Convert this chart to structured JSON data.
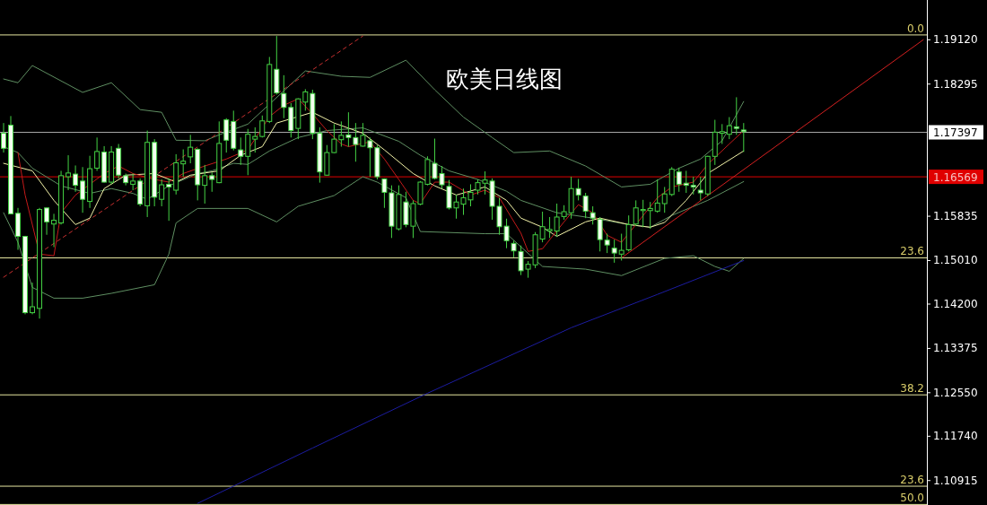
{
  "chart_data": {
    "type": "candlestick",
    "title": "欧美日线图",
    "categories": [
      null,
      null,
      null,
      null,
      null,
      null,
      null,
      null,
      null,
      null,
      null,
      null,
      null,
      null,
      null,
      null,
      null,
      null,
      null,
      null,
      null,
      null,
      null,
      null,
      null,
      null,
      null,
      null,
      null,
      null,
      null,
      null,
      null,
      null,
      null,
      null,
      null,
      null,
      null,
      null,
      null,
      null,
      null,
      null,
      null,
      null,
      null,
      null,
      null,
      null,
      null,
      null,
      null,
      null,
      null,
      null,
      null,
      null,
      null,
      null,
      null,
      null,
      null,
      null,
      null,
      null,
      null,
      null,
      null,
      null,
      null,
      null,
      null,
      null,
      null,
      null,
      null,
      null,
      null,
      null,
      null,
      null,
      null,
      null,
      null,
      null,
      null,
      null,
      null,
      null,
      null,
      null,
      null,
      null,
      null,
      null,
      null,
      null,
      null,
      null,
      null,
      null,
      null,
      null,
      null,
      null,
      null,
      null,
      null,
      null,
      null,
      null,
      null,
      null,
      null,
      null,
      null,
      null,
      null,
      null,
      null,
      null,
      null,
      null,
      null,
      null,
      null,
      null,
      null
    ],
    "ohlc": [
      [
        1.1738,
        1.1757,
        1.1702,
        1.171
      ],
      [
        1.1753,
        1.177,
        1.1588,
        1.1588
      ],
      [
        1.1589,
        1.1599,
        1.1521,
        1.1546
      ],
      [
        1.1546,
        1.1547,
        1.1401,
        1.1404
      ],
      [
        1.1404,
        1.146,
        1.1401,
        1.1415
      ],
      [
        1.1412,
        1.1599,
        1.1393,
        1.1596
      ],
      [
        1.1599,
        1.1599,
        1.1549,
        1.1573
      ],
      [
        1.1569,
        1.1588,
        1.1526,
        1.1576
      ],
      [
        1.1571,
        1.1668,
        1.1568,
        1.1659
      ],
      [
        1.1657,
        1.1697,
        1.1632,
        1.1664
      ],
      [
        1.1662,
        1.1678,
        1.1629,
        1.1641
      ],
      [
        1.1649,
        1.1675,
        1.159,
        1.1615
      ],
      [
        1.1611,
        1.1696,
        1.1599,
        1.1672
      ],
      [
        1.1673,
        1.173,
        1.1668,
        1.1704
      ],
      [
        1.1703,
        1.1714,
        1.1646,
        1.1647
      ],
      [
        1.1647,
        1.1714,
        1.1643,
        1.1703
      ],
      [
        1.171,
        1.1718,
        1.1654,
        1.166
      ],
      [
        1.1659,
        1.1663,
        1.1641,
        1.1646
      ],
      [
        1.1643,
        1.1663,
        1.1632,
        1.1649
      ],
      [
        1.1649,
        1.1654,
        1.1602,
        1.1606
      ],
      [
        1.1603,
        1.1743,
        1.1582,
        1.1721
      ],
      [
        1.1721,
        1.1727,
        1.1602,
        1.1619
      ],
      [
        1.1615,
        1.1652,
        1.1602,
        1.1642
      ],
      [
        1.1643,
        1.1654,
        1.1575,
        1.1638
      ],
      [
        1.1632,
        1.1699,
        1.1624,
        1.1683
      ],
      [
        1.1681,
        1.1708,
        1.1657,
        1.1686
      ],
      [
        1.1694,
        1.1735,
        1.1682,
        1.1712
      ],
      [
        1.1708,
        1.171,
        1.1613,
        1.1642
      ],
      [
        1.1641,
        1.1679,
        1.1607,
        1.1659
      ],
      [
        1.1659,
        1.1665,
        1.1629,
        1.1652
      ],
      [
        1.1646,
        1.176,
        1.1645,
        1.1719
      ],
      [
        1.1763,
        1.1766,
        1.1702,
        1.1725
      ],
      [
        1.176,
        1.178,
        1.1706,
        1.171
      ],
      [
        1.1707,
        1.173,
        1.1679,
        1.1695
      ],
      [
        1.1695,
        1.1746,
        1.166,
        1.1736
      ],
      [
        1.1727,
        1.1749,
        1.1702,
        1.1732
      ],
      [
        1.1732,
        1.1771,
        1.173,
        1.1761
      ],
      [
        1.176,
        1.188,
        1.1757,
        1.1866
      ],
      [
        1.1857,
        1.1919,
        1.181,
        1.1813
      ],
      [
        1.1812,
        1.1846,
        1.1766,
        1.1786
      ],
      [
        1.1786,
        1.1794,
        1.173,
        1.1743
      ],
      [
        1.1747,
        1.1803,
        1.1727,
        1.1802
      ],
      [
        1.1796,
        1.182,
        1.178,
        1.1815
      ],
      [
        1.1812,
        1.1819,
        1.1727,
        1.1738
      ],
      [
        1.1738,
        1.1749,
        1.1646,
        1.1666
      ],
      [
        1.166,
        1.1716,
        1.1659,
        1.1702
      ],
      [
        1.1702,
        1.1755,
        1.1701,
        1.1727
      ],
      [
        1.1726,
        1.176,
        1.1713,
        1.1734
      ],
      [
        1.1735,
        1.1777,
        1.1713,
        1.173
      ],
      [
        1.173,
        1.1757,
        1.1685,
        1.1717
      ],
      [
        1.1714,
        1.1757,
        1.1713,
        1.1734
      ],
      [
        1.1724,
        1.173,
        1.1657,
        1.1711
      ],
      [
        1.1711,
        1.1716,
        1.1652,
        1.1657
      ],
      [
        1.1653,
        1.1654,
        1.1599,
        1.1628
      ],
      [
        1.1627,
        1.1641,
        1.1543,
        1.1565
      ],
      [
        1.156,
        1.1641,
        1.1557,
        1.1624
      ],
      [
        1.161,
        1.1629,
        1.1563,
        1.1568
      ],
      [
        1.1565,
        1.1613,
        1.1543,
        1.1607
      ],
      [
        1.1606,
        1.1649,
        1.1604,
        1.1647
      ],
      [
        1.1643,
        1.1695,
        1.1641,
        1.1689
      ],
      [
        1.1682,
        1.1728,
        1.1652,
        1.1654
      ],
      [
        1.1663,
        1.1677,
        1.1635,
        1.1642
      ],
      [
        1.1639,
        1.1651,
        1.1596,
        1.1599
      ],
      [
        1.1599,
        1.1624,
        1.1579,
        1.161
      ],
      [
        1.1606,
        1.1635,
        1.1586,
        1.1618
      ],
      [
        1.1614,
        1.1643,
        1.1602,
        1.1628
      ],
      [
        1.1632,
        1.1652,
        1.1624,
        1.1646
      ],
      [
        1.1645,
        1.1667,
        1.1624,
        1.1651
      ],
      [
        1.1649,
        1.1654,
        1.1577,
        1.1602
      ],
      [
        1.1602,
        1.1618,
        1.1549,
        1.1564
      ],
      [
        1.1565,
        1.1579,
        1.1524,
        1.1538
      ],
      [
        1.1533,
        1.1538,
        1.1507,
        1.1519
      ],
      [
        1.1518,
        1.1529,
        1.1474,
        1.1482
      ],
      [
        1.1485,
        1.15,
        1.1469,
        1.1494
      ],
      [
        1.1493,
        1.1554,
        1.1487,
        1.1549
      ],
      [
        1.1541,
        1.1592,
        1.1535,
        1.1564
      ],
      [
        1.1556,
        1.1582,
        1.1543,
        1.1559
      ],
      [
        1.1556,
        1.1607,
        1.1545,
        1.1582
      ],
      [
        1.1583,
        1.1604,
        1.1577,
        1.1592
      ],
      [
        1.159,
        1.1657,
        1.1579,
        1.1635
      ],
      [
        1.1635,
        1.1653,
        1.1613,
        1.1623
      ],
      [
        1.1621,
        1.1627,
        1.158,
        1.1593
      ],
      [
        1.159,
        1.1602,
        1.1568,
        1.158
      ],
      [
        1.1578,
        1.1582,
        1.1518,
        1.154
      ],
      [
        1.1539,
        1.1551,
        1.1515,
        1.153
      ],
      [
        1.1524,
        1.154,
        1.1497,
        1.1515
      ],
      [
        1.1513,
        1.1551,
        1.1501,
        1.152
      ],
      [
        1.1521,
        1.1585,
        1.1518,
        1.1568
      ],
      [
        1.1569,
        1.1613,
        1.1565,
        1.1599
      ],
      [
        1.1594,
        1.1614,
        1.1563,
        1.1596
      ],
      [
        1.1594,
        1.161,
        1.156,
        1.1598
      ],
      [
        1.1593,
        1.1652,
        1.159,
        1.1608
      ],
      [
        1.1607,
        1.1638,
        1.159,
        1.1625
      ],
      [
        1.1624,
        1.1675,
        1.1621,
        1.1671
      ],
      [
        1.1666,
        1.1674,
        1.1629,
        1.1643
      ],
      [
        1.1645,
        1.1668,
        1.1627,
        1.1641
      ],
      [
        1.1641,
        1.1657,
        1.1624,
        1.1638
      ],
      [
        1.1632,
        1.1657,
        1.1613,
        1.1627
      ],
      [
        1.1625,
        1.1696,
        1.1621,
        1.1695
      ],
      [
        1.1695,
        1.1763,
        1.1679,
        1.174
      ],
      [
        1.1738,
        1.1755,
        1.1718,
        1.1741
      ],
      [
        1.1736,
        1.1768,
        1.1727,
        1.1752
      ],
      [
        1.175,
        1.1805,
        1.1735,
        1.1747
      ],
      [
        1.1744,
        1.1757,
        1.1703,
        1.1741
      ],
      null,
      null,
      null,
      null,
      null,
      null,
      null,
      null,
      null,
      null,
      null,
      null,
      null,
      null,
      null,
      null,
      null,
      null,
      null,
      null,
      null,
      null,
      null,
      null,
      null
    ],
    "color": "#44d244",
    "series": [
      {
        "type": "line",
        "color": "#5f8f62",
        "values": [
          1.1839,
          null,
          1.1832,
          null,
          1.1864,
          null,
          null,
          null,
          null,
          null,
          null,
          1.1814,
          null,
          null,
          null,
          1.1832,
          null,
          null,
          null,
          1.1782,
          null,
          null,
          1.1777,
          null,
          1.1725,
          null,
          null,
          null,
          1.1724,
          null,
          1.1735,
          null,
          null,
          null,
          1.1755,
          null,
          null,
          null,
          null,
          null,
          null,
          null,
          1.1854,
          null,
          null,
          null,
          null,
          1.1844,
          null,
          null,
          null,
          1.1842,
          null,
          null,
          null,
          null,
          1.1874,
          null,
          null,
          null,
          1.1819,
          null,
          null,
          null,
          1.1768,
          null,
          null,
          null,
          1.173,
          null,
          null,
          1.1702,
          null,
          null,
          null,
          null,
          1.1705,
          null,
          null,
          null,
          null,
          1.1677,
          null,
          null,
          null,
          null,
          1.1638,
          null,
          null,
          null,
          1.1643,
          null,
          null,
          null,
          1.1673,
          null,
          null,
          1.169,
          null,
          null,
          1.1724,
          null,
          null,
          1.1797,
          null,
          null,
          null,
          null,
          null,
          null,
          null,
          null,
          null,
          null,
          null,
          null,
          null,
          null,
          null,
          null,
          null,
          null,
          null,
          null,
          null,
          null,
          null,
          null,
          null
        ]
      },
      {
        "type": "line",
        "color": "#5f8f62",
        "values": [
          1.1713,
          null,
          1.1702,
          null,
          1.1673,
          null,
          null,
          null,
          1.164,
          null,
          null,
          null,
          1.1626,
          null,
          null,
          1.1635,
          null,
          null,
          1.1626,
          null,
          1.1615,
          null,
          null,
          1.164,
          null,
          null,
          null,
          1.1663,
          null,
          1.1668,
          null,
          null,
          1.1682,
          null,
          1.168,
          null,
          null,
          1.1705,
          null,
          null,
          null,
          1.173,
          null,
          null,
          null,
          1.1743,
          null,
          null,
          null,
          null,
          1.1748,
          null,
          null,
          null,
          null,
          1.1723,
          null,
          null,
          1.1697,
          null,
          null,
          null,
          1.1668,
          null,
          null,
          null,
          1.1652,
          null,
          null,
          null,
          1.163,
          null,
          1.1613,
          null,
          null,
          null,
          null,
          1.159,
          null,
          null,
          null,
          null,
          1.158,
          null,
          null,
          null,
          null,
          1.1568,
          null,
          null,
          1.1563,
          null,
          null,
          1.1585,
          null,
          null,
          null,
          null,
          1.1613,
          null,
          null,
          null,
          null,
          1.1648,
          null,
          null,
          null,
          null,
          null,
          null,
          null,
          null,
          null,
          null,
          null,
          null,
          null,
          null,
          null,
          null,
          null,
          null,
          null,
          null,
          null,
          null,
          null,
          null,
          null
        ]
      },
      {
        "type": "line",
        "color": "#5f8f62",
        "values": [
          1.159,
          null,
          1.1535,
          null,
          1.1451,
          null,
          null,
          1.1431,
          null,
          null,
          null,
          1.1431,
          null,
          null,
          null,
          1.144,
          null,
          null,
          null,
          null,
          null,
          1.1456,
          null,
          1.1513,
          1.1571,
          null,
          null,
          1.1598,
          null,
          null,
          null,
          null,
          null,
          null,
          1.1598,
          null,
          null,
          null,
          1.1573,
          null,
          null,
          1.1602,
          null,
          null,
          null,
          null,
          1.1622,
          null,
          null,
          null,
          1.1657,
          null,
          1.1647,
          null,
          null,
          null,
          1.1618,
          null,
          1.1555,
          null,
          null,
          null,
          null,
          null,
          null,
          null,
          null,
          1.1551,
          null,
          null,
          1.1551,
          null,
          null,
          null,
          null,
          1.149,
          null,
          null,
          null,
          null,
          null,
          1.1485,
          null,
          null,
          null,
          null,
          1.1473,
          null,
          null,
          null,
          null,
          null,
          1.1505,
          null,
          null,
          null,
          1.151,
          null,
          null,
          1.149,
          null,
          1.1481,
          null,
          1.1505,
          null,
          null,
          null,
          null,
          null,
          null,
          null,
          null,
          null,
          null,
          null,
          null,
          null,
          null,
          null,
          null,
          null,
          null,
          null,
          null,
          null,
          null,
          null,
          null,
          null
        ]
      },
      {
        "type": "line",
        "color": "#f2f2a8",
        "values": [
          1.1682,
          null,
          null,
          null,
          1.1668,
          null,
          null,
          1.1613,
          null,
          null,
          1.1568,
          null,
          1.158,
          null,
          1.1635,
          null,
          null,
          1.166,
          null,
          null,
          null,
          1.1663,
          null,
          null,
          1.1647,
          null,
          1.166,
          null,
          null,
          null,
          1.1668,
          null,
          null,
          1.1697,
          null,
          null,
          1.1713,
          null,
          1.1757,
          null,
          null,
          null,
          null,
          1.1777,
          null,
          null,
          1.1757,
          null,
          null,
          null,
          1.1738,
          null,
          null,
          1.1707,
          null,
          null,
          null,
          1.1663,
          null,
          null,
          1.164,
          null,
          null,
          1.1623,
          null,
          null,
          null,
          1.1638,
          null,
          null,
          1.1613,
          null,
          1.158,
          null,
          null,
          1.1563,
          null,
          1.1546,
          null,
          null,
          null,
          1.1573,
          null,
          1.158,
          null,
          null,
          null,
          1.1568,
          null,
          null,
          1.1563,
          null,
          1.1572,
          null,
          null,
          1.1613,
          null,
          null,
          1.1663,
          null,
          null,
          null,
          null,
          1.1705,
          null,
          null,
          null,
          null,
          null,
          null,
          null,
          null,
          null,
          null,
          null,
          null,
          null,
          null,
          null,
          null,
          null,
          null,
          null,
          null,
          null,
          null,
          null,
          null,
          null
        ]
      },
      {
        "type": "line",
        "color": "#c41a1a",
        "values": [
          null,
          null,
          1.1702,
          1.1623,
          null,
          1.1513,
          null,
          1.151,
          1.159,
          null,
          1.1623,
          null,
          null,
          null,
          1.1663,
          null,
          1.1677,
          null,
          1.1663,
          null,
          null,
          1.1652,
          null,
          1.1647,
          null,
          1.1663,
          null,
          null,
          1.1677,
          null,
          null,
          1.169,
          null,
          null,
          1.1707,
          null,
          null,
          1.1769,
          null,
          1.179,
          null,
          1.1802,
          null,
          1.1774,
          null,
          1.1743,
          null,
          1.1718,
          1.1713,
          null,
          null,
          1.1722,
          null,
          1.169,
          null,
          1.1652,
          null,
          1.1613,
          1.1607,
          null,
          1.1647,
          null,
          1.1647,
          null,
          null,
          1.1623,
          null,
          1.1632,
          null,
          1.1618,
          null,
          null,
          1.1552,
          1.1518,
          null,
          1.1523,
          null,
          null,
          1.1573,
          null,
          1.1605,
          null,
          1.159,
          null,
          1.1548,
          null,
          1.1535,
          null,
          1.1568,
          null,
          null,
          1.1618,
          null,
          1.1638,
          null,
          null,
          1.1647,
          null,
          1.168,
          null,
          null,
          1.1718,
          null,
          1.1743,
          null,
          null,
          null,
          null,
          null,
          null,
          null,
          null,
          null,
          null,
          null,
          null,
          null,
          null,
          null,
          null,
          null,
          null,
          null,
          null,
          null,
          null,
          null,
          null,
          null
        ]
      },
      {
        "type": "line",
        "color": "#1c1ca0",
        "values": [
          null,
          null,
          null,
          null,
          null,
          null,
          null,
          null,
          null,
          null,
          null,
          null,
          null,
          null,
          null,
          null,
          null,
          null,
          null,
          null,
          null,
          null,
          null,
          null,
          null,
          null,
          null,
          1.1049,
          null,
          null,
          null,
          null,
          null,
          null,
          null,
          null,
          null,
          null,
          null,
          null,
          null,
          null,
          null,
          1.1152,
          null,
          null,
          null,
          null,
          null,
          null,
          null,
          null,
          null,
          null,
          null,
          null,
          null,
          null,
          null,
          1.1254,
          null,
          null,
          null,
          null,
          null,
          null,
          null,
          null,
          null,
          null,
          null,
          null,
          null,
          null,
          null,
          null,
          null,
          null,
          null,
          1.1376,
          null,
          null,
          null,
          null,
          null,
          null,
          null,
          null,
          null,
          null,
          null,
          1.1438,
          null,
          null,
          null,
          null,
          null,
          null,
          null,
          null,
          null,
          null,
          null,
          1.1501,
          null,
          null,
          null,
          null,
          null,
          null,
          null,
          null,
          null,
          null,
          null,
          null,
          null,
          null,
          null,
          null,
          null,
          null,
          null,
          null,
          null,
          null,
          null,
          null,
          null
        ]
      },
      {
        "type": "line",
        "color": "#d42020",
        "values": [
          null,
          null,
          null,
          null,
          null,
          null,
          null,
          null,
          null,
          null,
          null,
          null,
          null,
          null,
          null,
          null,
          null,
          null,
          null,
          null,
          null,
          null,
          null,
          null,
          null,
          null,
          null,
          null,
          null,
          null,
          null,
          null,
          null,
          null,
          null,
          null,
          null,
          null,
          null,
          null,
          null,
          null,
          null,
          null,
          null,
          null,
          null,
          null,
          null,
          null,
          null,
          null,
          null,
          null,
          null,
          null,
          null,
          null,
          null,
          null,
          null,
          null,
          null,
          null,
          null,
          null,
          null,
          null,
          null,
          null,
          null,
          null,
          null,
          null,
          null,
          null,
          null,
          null,
          null,
          null,
          null,
          null,
          null,
          null,
          null,
          null,
          1.1506,
          null,
          null,
          null,
          null,
          null,
          null,
          null,
          null,
          null,
          null,
          null,
          null,
          null,
          null,
          null,
          null,
          null,
          null,
          null,
          null,
          null,
          null,
          null,
          null,
          null,
          null,
          null,
          null,
          null,
          null,
          null,
          null,
          null,
          null,
          null,
          null,
          null,
          null,
          null,
          null,
          null,
          1.1912
        ]
      },
      {
        "type": "line",
        "color": "#c83030",
        "line_style": "dashed",
        "values": [
          1.147,
          null,
          null,
          null,
          null,
          null,
          null,
          null,
          null,
          null,
          null,
          null,
          null,
          null,
          null,
          null,
          null,
          null,
          null,
          null,
          null,
          null,
          null,
          null,
          null,
          null,
          null,
          null,
          null,
          null,
          null,
          null,
          null,
          null,
          null,
          null,
          null,
          null,
          null,
          null,
          null,
          null,
          null,
          null,
          null,
          null,
          null,
          null,
          null,
          null,
          1.1919,
          null,
          null,
          null,
          null,
          null,
          null,
          null,
          null,
          null,
          null,
          null,
          null,
          null,
          null,
          null,
          null,
          null,
          null,
          null,
          null,
          null,
          null,
          null,
          null,
          null,
          null,
          null,
          null,
          null,
          null,
          null,
          null,
          null,
          null,
          null,
          null,
          null,
          null,
          null,
          null,
          null,
          null,
          null,
          null,
          null,
          null,
          null,
          null,
          null,
          null,
          null,
          null,
          null,
          null,
          null,
          null,
          null,
          null,
          null,
          null,
          null,
          null,
          null,
          null,
          null,
          null,
          null,
          null,
          null,
          null,
          null,
          null,
          null,
          null,
          null,
          null,
          null,
          null
        ]
      }
    ],
    "ylim": [
      1.1046,
      1.1986
    ],
    "yticks": [
      {
        "value": 1.1912,
        "label": "1.19120"
      },
      {
        "value": 1.18295,
        "label": "1.18295"
      },
      {
        "value": 1.15835,
        "label": "1.15835"
      },
      {
        "value": 1.1501,
        "label": "1.15010"
      },
      {
        "value": 1.142,
        "label": "1.14200"
      },
      {
        "value": 1.13375,
        "label": "1.13375"
      },
      {
        "value": 1.1255,
        "label": "1.12550"
      },
      {
        "value": 1.1174,
        "label": "1.11740"
      },
      {
        "value": 1.10915,
        "label": "1.10915"
      }
    ],
    "tick_labels": "y",
    "ref_lines": [
      {
        "axis": "y",
        "value": 1.1921,
        "color": "#e6e6a0"
      },
      {
        "axis": "y",
        "value": 1.1506,
        "color": "#e6e6a0"
      },
      {
        "axis": "y",
        "value": 1.1251,
        "color": "#e6e6a0"
      },
      {
        "axis": "y",
        "value": 1.1081,
        "color": "#e6e6a0"
      },
      {
        "axis": "y",
        "value": 1.1047,
        "color": "#e6e6a0"
      },
      {
        "axis": "y",
        "value": 1.17397,
        "label": "1.17397",
        "color": "#a8a8a8"
      },
      {
        "axis": "y",
        "value": 1.16569,
        "label": "1.16569",
        "color": "#e00000"
      }
    ],
    "annotations": [
      {
        "text": "0.0",
        "y": 1.1921
      },
      {
        "text": "23.6",
        "y": 1.1506
      },
      {
        "text": "38.2",
        "y": 1.1251
      },
      {
        "text": "23.6",
        "y": 1.1081
      },
      {
        "text": "50.0",
        "y": 1.1047
      }
    ]
  }
}
